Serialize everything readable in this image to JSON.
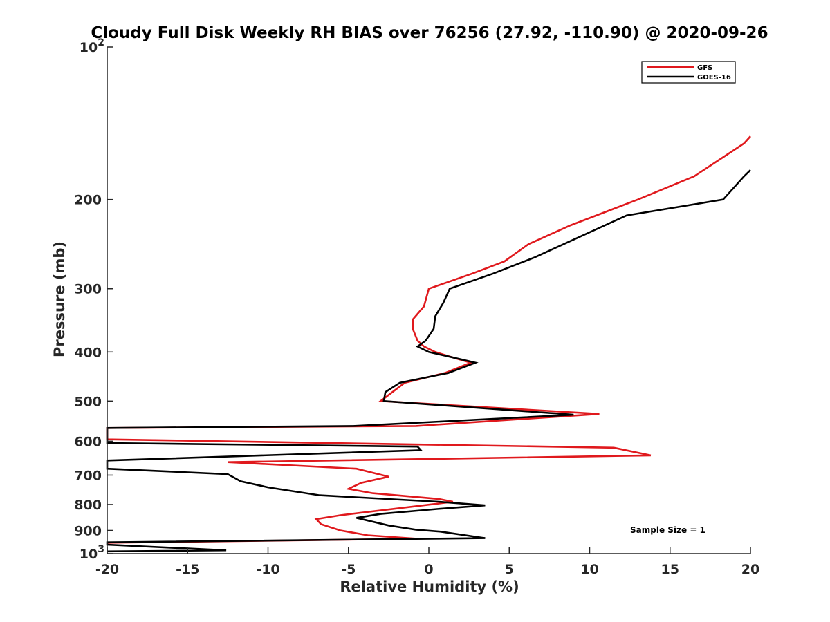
{
  "chart_data": {
    "type": "line",
    "title": "Cloudy Full Disk Weekly RH BIAS over 76256 (27.92, -110.90) @ 2020-09-26",
    "xlabel": "Relative Humidity (%)",
    "ylabel": "Pressure (mb)",
    "xlim": [
      -20,
      20
    ],
    "ylim": [
      100,
      1000
    ],
    "yscale": "log",
    "y_reversed": true,
    "xticks": [
      "-20",
      "-15",
      "-10",
      "-5",
      "0",
      "5",
      "10",
      "15",
      "20"
    ],
    "yticks": [
      {
        "value": 100,
        "base": "10",
        "exp": "2"
      },
      {
        "value": 200,
        "label": "200"
      },
      {
        "value": 300,
        "label": "300"
      },
      {
        "value": 400,
        "label": "400"
      },
      {
        "value": 500,
        "label": "500"
      },
      {
        "value": 600,
        "label": "600"
      },
      {
        "value": 700,
        "label": "700"
      },
      {
        "value": 800,
        "label": "800"
      },
      {
        "value": 900,
        "label": "900"
      },
      {
        "value": 1000,
        "base": "10",
        "exp": "3"
      }
    ],
    "legend_position": "top-right",
    "annotation": "Sample Size = 1",
    "series": [
      {
        "name": "GFS",
        "color": "#e0191d",
        "points": [
          [
            20.0,
            150
          ],
          [
            19.6,
            155
          ],
          [
            16.5,
            180
          ],
          [
            13.0,
            200
          ],
          [
            8.8,
            225
          ],
          [
            6.2,
            245
          ],
          [
            4.7,
            265
          ],
          [
            2.7,
            280
          ],
          [
            0.0,
            300
          ],
          [
            -0.3,
            325
          ],
          [
            -1.0,
            345
          ],
          [
            -1.0,
            360
          ],
          [
            -0.7,
            380
          ],
          [
            -0.3,
            390
          ],
          [
            0.4,
            400
          ],
          [
            1.5,
            410
          ],
          [
            2.6,
            420
          ],
          [
            1.0,
            440
          ],
          [
            -1.5,
            460
          ],
          [
            -3.0,
            500
          ],
          [
            10.6,
            530
          ],
          [
            -0.8,
            560
          ],
          [
            -20.0,
            565
          ],
          [
            -20.0,
            595
          ],
          [
            11.5,
            618
          ],
          [
            13.8,
            640
          ],
          [
            -12.5,
            660
          ],
          [
            -4.5,
            680
          ],
          [
            -2.5,
            705
          ],
          [
            -4.2,
            725
          ],
          [
            -5.0,
            745
          ],
          [
            -3.5,
            760
          ],
          [
            0.6,
            780
          ],
          [
            1.5,
            790
          ],
          [
            -5.5,
            840
          ],
          [
            -7.0,
            855
          ],
          [
            -6.7,
            875
          ],
          [
            -5.5,
            900
          ],
          [
            -3.8,
            920
          ],
          [
            -0.7,
            935
          ],
          [
            -20.0,
            952
          ]
        ]
      },
      {
        "name": "GOES-16",
        "color": "#000000",
        "points": [
          [
            20.0,
            175
          ],
          [
            19.6,
            180
          ],
          [
            18.3,
            200
          ],
          [
            12.3,
            215
          ],
          [
            9.0,
            240
          ],
          [
            6.6,
            260
          ],
          [
            4.0,
            280
          ],
          [
            1.3,
            300
          ],
          [
            0.9,
            320
          ],
          [
            0.4,
            340
          ],
          [
            0.3,
            360
          ],
          [
            -0.2,
            380
          ],
          [
            -0.7,
            390
          ],
          [
            0.0,
            400
          ],
          [
            1.5,
            410
          ],
          [
            2.9,
            420
          ],
          [
            1.2,
            440
          ],
          [
            -1.8,
            460
          ],
          [
            -2.7,
            480
          ],
          [
            -2.8,
            500
          ],
          [
            9.0,
            532
          ],
          [
            -4.7,
            560
          ],
          [
            -20.0,
            565
          ],
          [
            -20.0,
            605
          ],
          [
            -0.7,
            615
          ],
          [
            -0.5,
            625
          ],
          [
            -20.0,
            655
          ],
          [
            -20.0,
            680
          ],
          [
            -12.5,
            697
          ],
          [
            -11.7,
            720
          ],
          [
            -10.0,
            740
          ],
          [
            -6.8,
            767
          ],
          [
            0.6,
            790
          ],
          [
            3.5,
            803
          ],
          [
            0.8,
            815
          ],
          [
            -3.0,
            835
          ],
          [
            -4.5,
            850
          ],
          [
            -2.5,
            880
          ],
          [
            -0.8,
            897
          ],
          [
            0.7,
            905
          ],
          [
            3.5,
            932
          ],
          [
            -20.0,
            950
          ],
          [
            -20.0,
            960
          ],
          [
            -12.6,
            985
          ],
          [
            -20.0,
            990
          ]
        ]
      }
    ]
  }
}
